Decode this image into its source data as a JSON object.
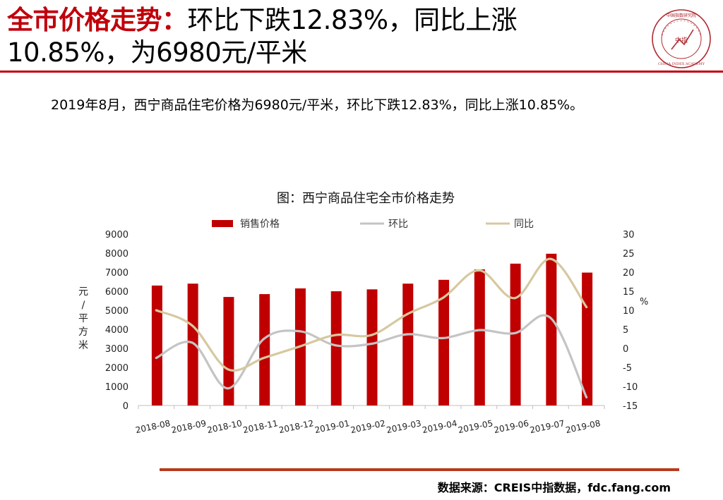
{
  "title": {
    "accent": "全市价格走势：",
    "line1_rest": "环比下跌12.83%，同比上涨",
    "line2": "10.85%，为6980元/平米"
  },
  "logo": {
    "center_text": "中指",
    "ring_top": "中国指数研究院",
    "ring_bottom": "CHINA INDEX ACADEMY"
  },
  "summary": "2019年8月，西宁商品住宅价格为6980元/平米，环比下跌12.83%，同比上涨10.85%。",
  "chart_data": {
    "type": "bar",
    "title": "图：西宁商品住宅全市价格走势",
    "categories": [
      "2018-08",
      "2018-09",
      "2018-10",
      "2018-11",
      "2018-12",
      "2019-01",
      "2019-02",
      "2019-03",
      "2019-04",
      "2019-05",
      "2019-06",
      "2019-07",
      "2019-08"
    ],
    "y_left": {
      "label": "元/平方米",
      "min": 0,
      "max": 9000,
      "ticks": [
        0,
        1000,
        2000,
        3000,
        4000,
        5000,
        6000,
        7000,
        8000,
        9000
      ]
    },
    "y_right": {
      "label": "%",
      "min": -15,
      "max": 30,
      "ticks": [
        -15,
        -10,
        -5,
        0,
        5,
        10,
        15,
        20,
        25,
        30
      ]
    },
    "legend_position": "top",
    "series": [
      {
        "name": "销售价格",
        "kind": "bar",
        "axis": "left",
        "color": "#c00000",
        "values": [
          6300,
          6400,
          5700,
          5850,
          6150,
          6000,
          6100,
          6400,
          6600,
          7150,
          7450,
          7970,
          6980
        ]
      },
      {
        "name": "环比",
        "kind": "line",
        "axis": "right",
        "color": "#c4c4c4",
        "values": [
          -2.5,
          1.5,
          -10.5,
          2.5,
          4.5,
          0.8,
          1.2,
          3.7,
          2.7,
          4.8,
          4.0,
          8.0,
          -12.83
        ]
      },
      {
        "name": "同比",
        "kind": "line",
        "axis": "right",
        "color": "#d6c8a0",
        "values": [
          10.0,
          6.0,
          -5.5,
          -2.5,
          0.5,
          3.5,
          3.5,
          9.0,
          13.3,
          20.5,
          13.2,
          23.5,
          10.85
        ]
      }
    ]
  },
  "source": "数据来源：CREIS中指数据，fdc.fang.com"
}
